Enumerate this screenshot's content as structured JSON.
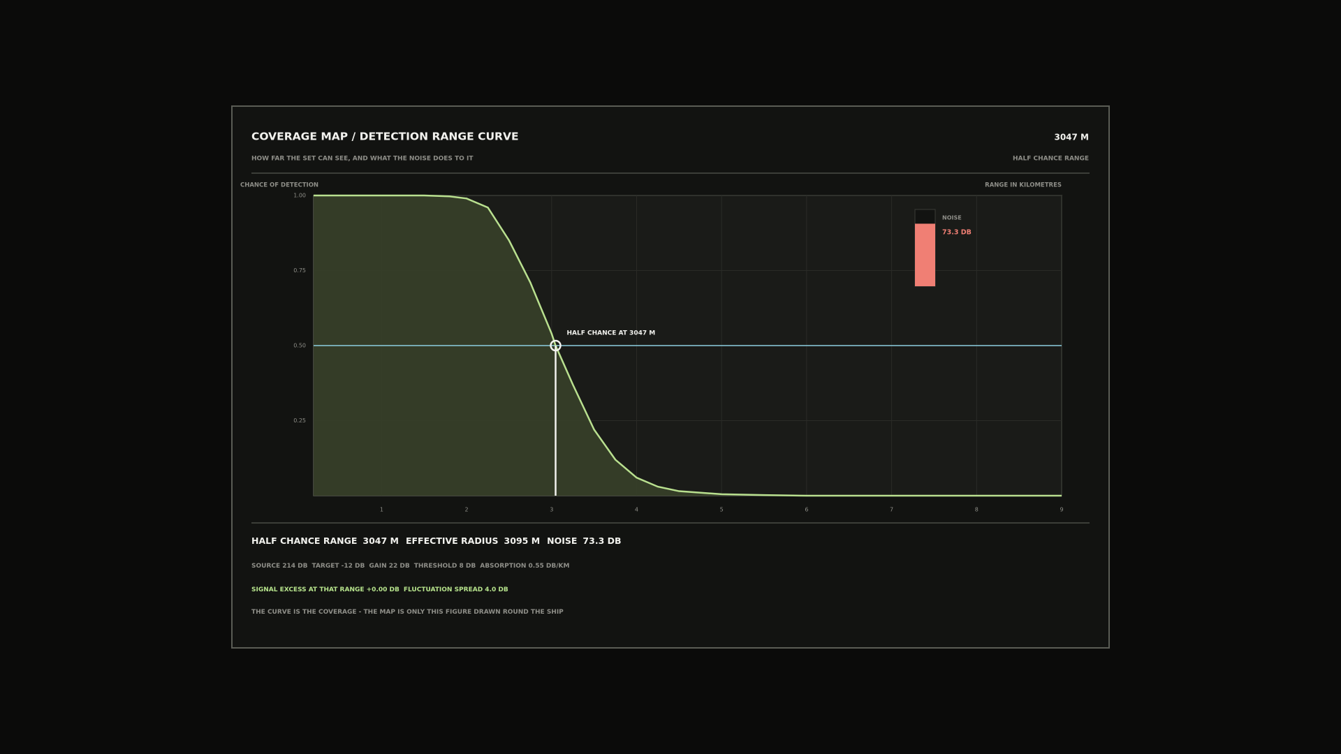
{
  "header": {
    "title": "COVERAGE MAP / DETECTION RANGE CURVE",
    "subtitle": "HOW FAR THE SET CAN SEE, AND WHAT THE NOISE DOES TO IT",
    "stat": "3047 M",
    "stat_label": "HALF CHANCE RANGE"
  },
  "chart_data": {
    "type": "line",
    "y_label": "CHANCE OF DETECTION",
    "x_label": "RANGE IN KILOMETRES",
    "x": [
      0.2,
      1,
      1.5,
      1.8,
      2,
      2.25,
      2.5,
      2.75,
      3,
      3.047,
      3.25,
      3.5,
      3.75,
      4,
      4.25,
      4.5,
      5,
      5.5,
      6,
      7,
      8,
      9
    ],
    "values": [
      1,
      1,
      1,
      0.997,
      0.99,
      0.96,
      0.85,
      0.71,
      0.54,
      0.5,
      0.37,
      0.22,
      0.12,
      0.06,
      0.03,
      0.015,
      0.005,
      0.002,
      0,
      0,
      0,
      0
    ],
    "color": "#b9e08f",
    "fill": "#363e28",
    "xlim": [
      0.2,
      9
    ],
    "ylim": [
      0,
      1
    ],
    "xticks": [
      1,
      2,
      3,
      4,
      5,
      6,
      7,
      8,
      9
    ],
    "yticks": [
      0.25,
      {
        "value": 0.5,
        "label": "0.50"
      },
      0.75,
      {
        "value": 1,
        "label": "1.00"
      }
    ],
    "grid": true,
    "reference": {
      "y": 0.5,
      "color": "#8ccfe0"
    },
    "marker": {
      "x": 3.047,
      "y": 0.5,
      "label": "HALF CHANCE AT 3047 M"
    },
    "gauge": {
      "name": "NOISE",
      "value": 73.3,
      "label": "73.3 DB",
      "lim": [
        0,
        90
      ],
      "color": "#f07f74"
    }
  },
  "footer": {
    "summary": [
      {
        "label": "HALF CHANCE RANGE",
        "value": "3047 M"
      },
      {
        "label": "EFFECTIVE RADIUS",
        "value": "3095 M"
      },
      {
        "label": "NOISE",
        "value": "73.3 DB"
      }
    ],
    "params": [
      "SOURCE 214 DB",
      "TARGET -12 DB",
      "GAIN 22 DB",
      "THRESHOLD 8 DB",
      "ABSORPTION 0.55 DB/KM"
    ],
    "excess": [
      "SIGNAL EXCESS AT THAT RANGE +0.00 DB",
      "FLUCTUATION SPREAD 4.0 DB"
    ],
    "note": "THE CURVE IS THE COVERAGE - THE MAP IS ONLY THIS FIGURE DRAWN ROUND THE SHIP"
  }
}
